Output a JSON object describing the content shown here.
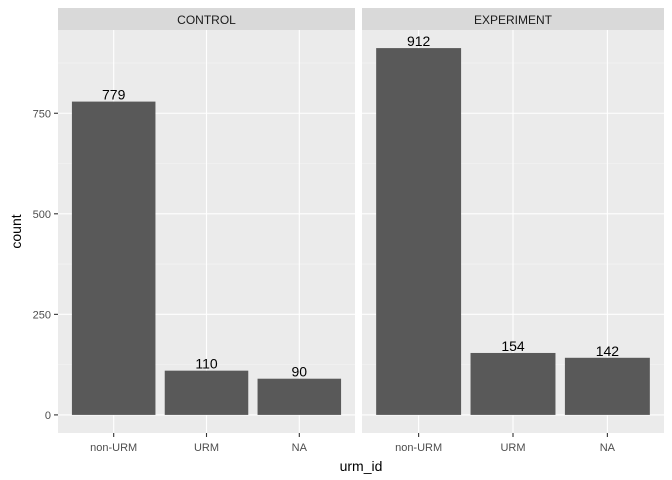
{
  "chart_data": {
    "type": "bar",
    "facet_var": "group",
    "facets": [
      {
        "name": "CONTROL",
        "values": [
          779,
          110,
          90
        ]
      },
      {
        "name": "EXPERIMENT",
        "values": [
          912,
          154,
          142
        ]
      }
    ],
    "categories": [
      "non-URM",
      "URM",
      "NA"
    ],
    "xlabel": "urm_id",
    "ylabel": "count",
    "ylim": [
      -45,
      957
    ],
    "yticks": [
      0,
      250,
      500,
      750
    ],
    "ytick_labels": [
      "0",
      "250",
      "500",
      "750"
    ],
    "grid": true,
    "theme": "ggplot2 grey",
    "colors": {
      "bar": "#595959",
      "panel_bg": "#ebebeb",
      "strip_bg": "#d9d9d9",
      "grid_major": "#ffffff",
      "tick_text": "#4d4d4d"
    }
  }
}
